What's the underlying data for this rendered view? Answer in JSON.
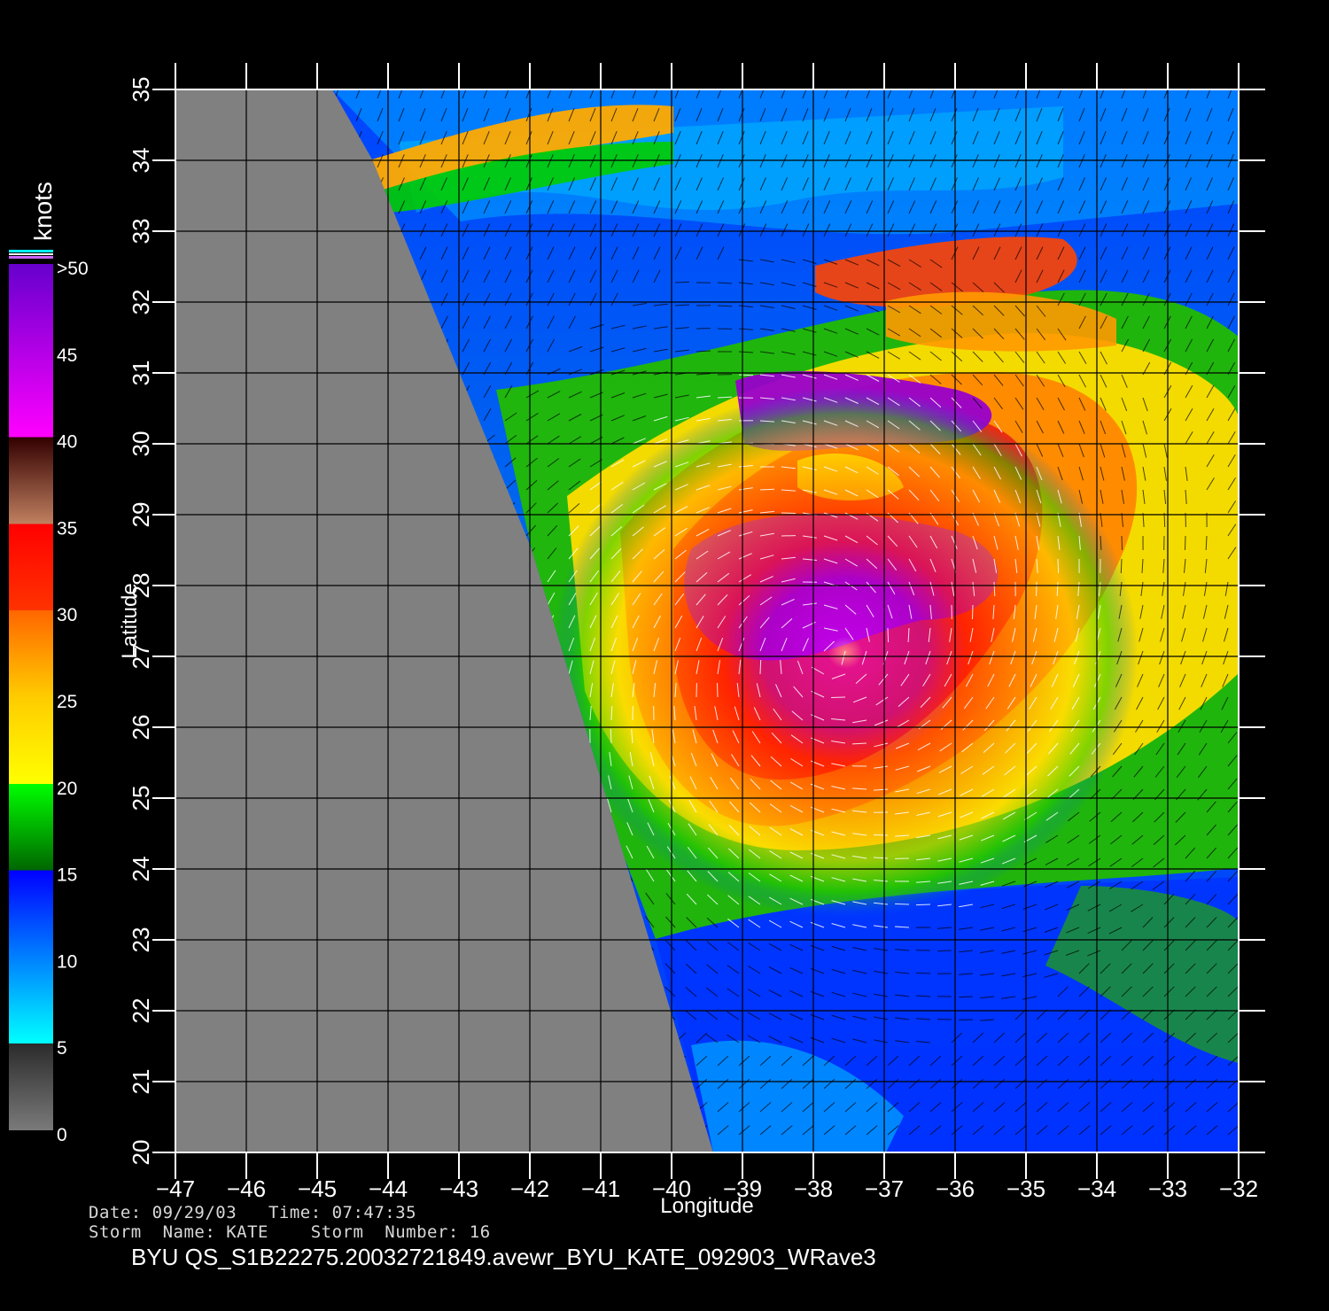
{
  "colorbar": {
    "unit_label": "knots",
    "labels": [
      ">50",
      "45",
      "40",
      "35",
      "30",
      "25",
      "20",
      "15",
      "10",
      "5",
      "0"
    ],
    "stops": [
      {
        "value": 0,
        "color": "#7a7a7a"
      },
      {
        "value": 5,
        "color": "#2b2b2b"
      },
      {
        "value": 5,
        "color": "#00ffff"
      },
      {
        "value": 15,
        "color": "#0000ff"
      },
      {
        "value": 15,
        "color": "#006600"
      },
      {
        "value": 20,
        "color": "#00ff00"
      },
      {
        "value": 20,
        "color": "#ffff00"
      },
      {
        "value": 25,
        "color": "#ffcc00"
      },
      {
        "value": 30,
        "color": "#ff6600"
      },
      {
        "value": 30,
        "color": "#ff3300"
      },
      {
        "value": 35,
        "color": "#ff0000"
      },
      {
        "value": 35,
        "color": "#c08060"
      },
      {
        "value": 40,
        "color": "#330000"
      },
      {
        "value": 40,
        "color": "#ff00ff"
      },
      {
        "value": 50,
        "color": "#6600cc"
      }
    ]
  },
  "map": {
    "lon_range": [
      -47,
      -32
    ],
    "lat_range": [
      20,
      35
    ],
    "lon_ticks": [
      -47,
      -46,
      -45,
      -44,
      -43,
      -42,
      -41,
      -40,
      -39,
      -38,
      -37,
      -36,
      -35,
      -34,
      -33,
      -32
    ],
    "lat_ticks": [
      20,
      21,
      22,
      23,
      24,
      25,
      26,
      27,
      28,
      29,
      30,
      31,
      32,
      33,
      34,
      35
    ],
    "lon_tick_labels": [
      "−47",
      "−46",
      "−45",
      "−44",
      "−43",
      "−42",
      "−41",
      "−40",
      "−39",
      "−38",
      "−37",
      "−36",
      "−35",
      "−34",
      "−33",
      "−32"
    ],
    "lat_tick_labels": [
      "20",
      "21",
      "22",
      "23",
      "24",
      "25",
      "26",
      "27",
      "28",
      "29",
      "30",
      "31",
      "32",
      "33",
      "34",
      "35"
    ],
    "xlabel": "Longitude",
    "ylabel": "Latitude",
    "no_data_color": "#808080",
    "grid": true,
    "storm_center": {
      "lon": -37.8,
      "lat": 26.3
    }
  },
  "footer": {
    "date_line": "Date: 09/29/03   Time: 07:47:35",
    "storm_line": "Storm  Name: KATE    Storm  Number: 16",
    "title": "BYU  QS_S1B22275.20032721849.avewr_BYU_KATE_092903_WRave3"
  }
}
